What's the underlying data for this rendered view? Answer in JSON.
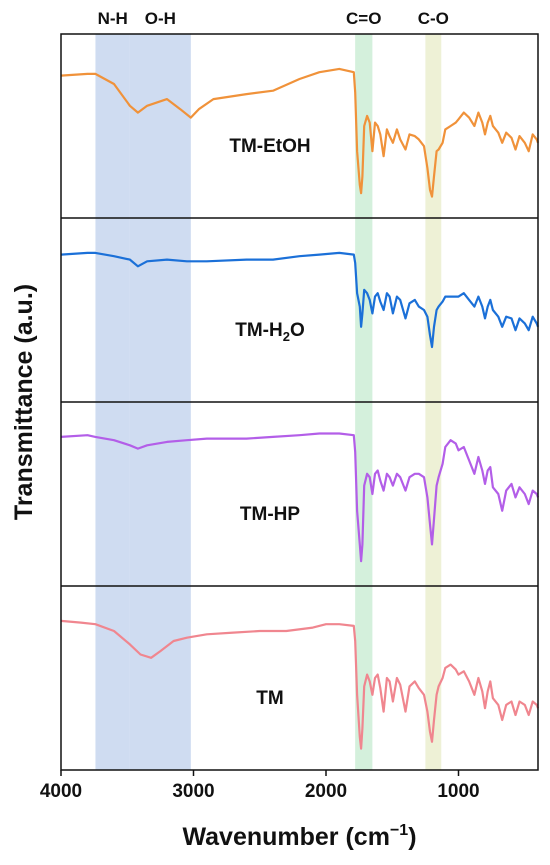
{
  "chart_data": {
    "type": "line",
    "xlabel": "Wavenumber (cm⁻¹)",
    "xlabel_main": "Wavenumber (cm",
    "xlabel_sup": "−1",
    "xlabel_close": ")",
    "ylabel": "Transmittance (a.u.)",
    "xlim": [
      4000,
      400
    ],
    "x_reversed": true,
    "x_ticks": [
      4000,
      3000,
      2000,
      1000
    ],
    "x_tick_labels": [
      "4000",
      "3000",
      "2000",
      "1000"
    ],
    "y_ticks_shown": false,
    "grid": false,
    "bands": [
      {
        "label": "N-H",
        "from": 3740,
        "to": 3480,
        "color": "#cfdcf1"
      },
      {
        "label": "O-H",
        "from": 3480,
        "to": 3020,
        "color": "#cfdcf1"
      },
      {
        "label": "C=O",
        "from": 1780,
        "to": 1650,
        "color": "#d4f0dc"
      },
      {
        "label": "C-O",
        "from": 1250,
        "to": 1130,
        "color": "#eef1d6"
      }
    ],
    "series": [
      {
        "name": "TM-EtOH",
        "label_parts": [
          "TM-EtOH"
        ],
        "color": "#f0923a",
        "points": [
          [
            4000,
            0.8
          ],
          [
            3800,
            0.81
          ],
          [
            3740,
            0.81
          ],
          [
            3600,
            0.75
          ],
          [
            3480,
            0.62
          ],
          [
            3420,
            0.58
          ],
          [
            3350,
            0.62
          ],
          [
            3200,
            0.66
          ],
          [
            3100,
            0.6
          ],
          [
            3020,
            0.55
          ],
          [
            2960,
            0.6
          ],
          [
            2850,
            0.66
          ],
          [
            2600,
            0.69
          ],
          [
            2400,
            0.71
          ],
          [
            2200,
            0.78
          ],
          [
            2050,
            0.82
          ],
          [
            1900,
            0.84
          ],
          [
            1790,
            0.82
          ],
          [
            1780,
            0.7
          ],
          [
            1765,
            0.35
          ],
          [
            1745,
            0.15
          ],
          [
            1735,
            0.1
          ],
          [
            1725,
            0.2
          ],
          [
            1712,
            0.5
          ],
          [
            1690,
            0.56
          ],
          [
            1670,
            0.52
          ],
          [
            1650,
            0.35
          ],
          [
            1630,
            0.52
          ],
          [
            1610,
            0.5
          ],
          [
            1590,
            0.45
          ],
          [
            1565,
            0.32
          ],
          [
            1540,
            0.48
          ],
          [
            1520,
            0.44
          ],
          [
            1495,
            0.4
          ],
          [
            1465,
            0.48
          ],
          [
            1440,
            0.42
          ],
          [
            1400,
            0.36
          ],
          [
            1370,
            0.45
          ],
          [
            1330,
            0.44
          ],
          [
            1300,
            0.42
          ],
          [
            1260,
            0.38
          ],
          [
            1235,
            0.25
          ],
          [
            1215,
            0.12
          ],
          [
            1200,
            0.08
          ],
          [
            1185,
            0.2
          ],
          [
            1165,
            0.35
          ],
          [
            1150,
            0.36
          ],
          [
            1120,
            0.4
          ],
          [
            1100,
            0.48
          ],
          [
            1060,
            0.5
          ],
          [
            1020,
            0.52
          ],
          [
            1000,
            0.54
          ],
          [
            960,
            0.58
          ],
          [
            920,
            0.55
          ],
          [
            880,
            0.5
          ],
          [
            850,
            0.58
          ],
          [
            820,
            0.52
          ],
          [
            800,
            0.45
          ],
          [
            780,
            0.52
          ],
          [
            760,
            0.56
          ],
          [
            740,
            0.5
          ],
          [
            700,
            0.46
          ],
          [
            670,
            0.4
          ],
          [
            640,
            0.46
          ],
          [
            600,
            0.43
          ],
          [
            570,
            0.36
          ],
          [
            540,
            0.44
          ],
          [
            500,
            0.4
          ],
          [
            470,
            0.35
          ],
          [
            440,
            0.45
          ],
          [
            410,
            0.42
          ],
          [
            400,
            0.4
          ]
        ]
      },
      {
        "name": "TM-H2O",
        "label_parts": [
          "TM-H",
          "2",
          "O"
        ],
        "color": "#1b70d8",
        "points": [
          [
            4000,
            0.83
          ],
          [
            3800,
            0.84
          ],
          [
            3740,
            0.84
          ],
          [
            3600,
            0.82
          ],
          [
            3480,
            0.8
          ],
          [
            3420,
            0.76
          ],
          [
            3350,
            0.79
          ],
          [
            3200,
            0.8
          ],
          [
            3050,
            0.79
          ],
          [
            2900,
            0.79
          ],
          [
            2600,
            0.8
          ],
          [
            2400,
            0.8
          ],
          [
            2200,
            0.82
          ],
          [
            2050,
            0.83
          ],
          [
            1900,
            0.84
          ],
          [
            1790,
            0.83
          ],
          [
            1780,
            0.78
          ],
          [
            1765,
            0.6
          ],
          [
            1745,
            0.52
          ],
          [
            1735,
            0.4
          ],
          [
            1725,
            0.48
          ],
          [
            1712,
            0.62
          ],
          [
            1690,
            0.6
          ],
          [
            1670,
            0.56
          ],
          [
            1650,
            0.48
          ],
          [
            1630,
            0.58
          ],
          [
            1610,
            0.6
          ],
          [
            1590,
            0.55
          ],
          [
            1565,
            0.5
          ],
          [
            1540,
            0.6
          ],
          [
            1520,
            0.58
          ],
          [
            1495,
            0.48
          ],
          [
            1465,
            0.58
          ],
          [
            1440,
            0.56
          ],
          [
            1400,
            0.45
          ],
          [
            1370,
            0.54
          ],
          [
            1330,
            0.56
          ],
          [
            1300,
            0.52
          ],
          [
            1260,
            0.5
          ],
          [
            1235,
            0.46
          ],
          [
            1215,
            0.35
          ],
          [
            1200,
            0.28
          ],
          [
            1185,
            0.4
          ],
          [
            1165,
            0.5
          ],
          [
            1150,
            0.52
          ],
          [
            1120,
            0.55
          ],
          [
            1100,
            0.58
          ],
          [
            1060,
            0.58
          ],
          [
            1020,
            0.58
          ],
          [
            1000,
            0.58
          ],
          [
            960,
            0.6
          ],
          [
            920,
            0.56
          ],
          [
            880,
            0.52
          ],
          [
            850,
            0.58
          ],
          [
            820,
            0.52
          ],
          [
            800,
            0.45
          ],
          [
            780,
            0.52
          ],
          [
            760,
            0.56
          ],
          [
            740,
            0.5
          ],
          [
            700,
            0.46
          ],
          [
            670,
            0.4
          ],
          [
            640,
            0.46
          ],
          [
            600,
            0.45
          ],
          [
            570,
            0.38
          ],
          [
            540,
            0.45
          ],
          [
            500,
            0.42
          ],
          [
            470,
            0.38
          ],
          [
            440,
            0.46
          ],
          [
            410,
            0.42
          ],
          [
            400,
            0.4
          ]
        ]
      },
      {
        "name": "TM-HP",
        "label_parts": [
          "TM-HP"
        ],
        "color": "#b35ee8",
        "points": [
          [
            4000,
            0.84
          ],
          [
            3800,
            0.85
          ],
          [
            3740,
            0.84
          ],
          [
            3600,
            0.82
          ],
          [
            3480,
            0.79
          ],
          [
            3420,
            0.77
          ],
          [
            3350,
            0.79
          ],
          [
            3200,
            0.81
          ],
          [
            3050,
            0.82
          ],
          [
            2900,
            0.83
          ],
          [
            2600,
            0.83
          ],
          [
            2400,
            0.84
          ],
          [
            2200,
            0.85
          ],
          [
            2050,
            0.86
          ],
          [
            1900,
            0.86
          ],
          [
            1790,
            0.85
          ],
          [
            1780,
            0.75
          ],
          [
            1765,
            0.4
          ],
          [
            1745,
            0.2
          ],
          [
            1735,
            0.1
          ],
          [
            1725,
            0.2
          ],
          [
            1712,
            0.55
          ],
          [
            1690,
            0.62
          ],
          [
            1670,
            0.6
          ],
          [
            1650,
            0.5
          ],
          [
            1630,
            0.62
          ],
          [
            1610,
            0.64
          ],
          [
            1590,
            0.58
          ],
          [
            1565,
            0.52
          ],
          [
            1540,
            0.62
          ],
          [
            1520,
            0.6
          ],
          [
            1495,
            0.55
          ],
          [
            1465,
            0.62
          ],
          [
            1440,
            0.6
          ],
          [
            1400,
            0.52
          ],
          [
            1370,
            0.6
          ],
          [
            1330,
            0.62
          ],
          [
            1300,
            0.62
          ],
          [
            1260,
            0.6
          ],
          [
            1235,
            0.48
          ],
          [
            1215,
            0.32
          ],
          [
            1200,
            0.2
          ],
          [
            1185,
            0.35
          ],
          [
            1165,
            0.55
          ],
          [
            1150,
            0.6
          ],
          [
            1120,
            0.68
          ],
          [
            1100,
            0.78
          ],
          [
            1060,
            0.82
          ],
          [
            1020,
            0.8
          ],
          [
            1000,
            0.76
          ],
          [
            960,
            0.78
          ],
          [
            920,
            0.7
          ],
          [
            880,
            0.62
          ],
          [
            850,
            0.72
          ],
          [
            820,
            0.64
          ],
          [
            800,
            0.56
          ],
          [
            780,
            0.64
          ],
          [
            760,
            0.66
          ],
          [
            740,
            0.54
          ],
          [
            700,
            0.5
          ],
          [
            670,
            0.4
          ],
          [
            640,
            0.52
          ],
          [
            600,
            0.56
          ],
          [
            570,
            0.48
          ],
          [
            540,
            0.54
          ],
          [
            500,
            0.5
          ],
          [
            470,
            0.44
          ],
          [
            440,
            0.52
          ],
          [
            410,
            0.5
          ],
          [
            400,
            0.48
          ]
        ]
      },
      {
        "name": "TM",
        "label_parts": [
          "TM"
        ],
        "color": "#f0868f",
        "points": [
          [
            4000,
            0.84
          ],
          [
            3850,
            0.83
          ],
          [
            3740,
            0.82
          ],
          [
            3600,
            0.78
          ],
          [
            3480,
            0.7
          ],
          [
            3400,
            0.64
          ],
          [
            3320,
            0.62
          ],
          [
            3250,
            0.66
          ],
          [
            3150,
            0.72
          ],
          [
            3050,
            0.74
          ],
          [
            2900,
            0.76
          ],
          [
            2700,
            0.77
          ],
          [
            2500,
            0.78
          ],
          [
            2300,
            0.78
          ],
          [
            2100,
            0.8
          ],
          [
            2000,
            0.82
          ],
          [
            1900,
            0.82
          ],
          [
            1790,
            0.81
          ],
          [
            1780,
            0.72
          ],
          [
            1765,
            0.4
          ],
          [
            1745,
            0.15
          ],
          [
            1735,
            0.08
          ],
          [
            1725,
            0.2
          ],
          [
            1712,
            0.45
          ],
          [
            1690,
            0.52
          ],
          [
            1670,
            0.48
          ],
          [
            1650,
            0.4
          ],
          [
            1630,
            0.5
          ],
          [
            1610,
            0.52
          ],
          [
            1590,
            0.44
          ],
          [
            1565,
            0.3
          ],
          [
            1540,
            0.5
          ],
          [
            1520,
            0.48
          ],
          [
            1495,
            0.36
          ],
          [
            1465,
            0.5
          ],
          [
            1440,
            0.46
          ],
          [
            1400,
            0.3
          ],
          [
            1370,
            0.45
          ],
          [
            1330,
            0.48
          ],
          [
            1300,
            0.44
          ],
          [
            1260,
            0.4
          ],
          [
            1235,
            0.3
          ],
          [
            1215,
            0.18
          ],
          [
            1200,
            0.12
          ],
          [
            1185,
            0.25
          ],
          [
            1165,
            0.4
          ],
          [
            1150,
            0.45
          ],
          [
            1120,
            0.5
          ],
          [
            1100,
            0.56
          ],
          [
            1060,
            0.58
          ],
          [
            1020,
            0.55
          ],
          [
            1000,
            0.52
          ],
          [
            960,
            0.54
          ],
          [
            920,
            0.48
          ],
          [
            880,
            0.4
          ],
          [
            850,
            0.5
          ],
          [
            820,
            0.42
          ],
          [
            800,
            0.32
          ],
          [
            780,
            0.42
          ],
          [
            760,
            0.48
          ],
          [
            740,
            0.38
          ],
          [
            700,
            0.34
          ],
          [
            670,
            0.25
          ],
          [
            640,
            0.34
          ],
          [
            600,
            0.36
          ],
          [
            570,
            0.28
          ],
          [
            540,
            0.36
          ],
          [
            500,
            0.34
          ],
          [
            470,
            0.28
          ],
          [
            440,
            0.36
          ],
          [
            410,
            0.34
          ],
          [
            400,
            0.32
          ]
        ]
      }
    ]
  }
}
